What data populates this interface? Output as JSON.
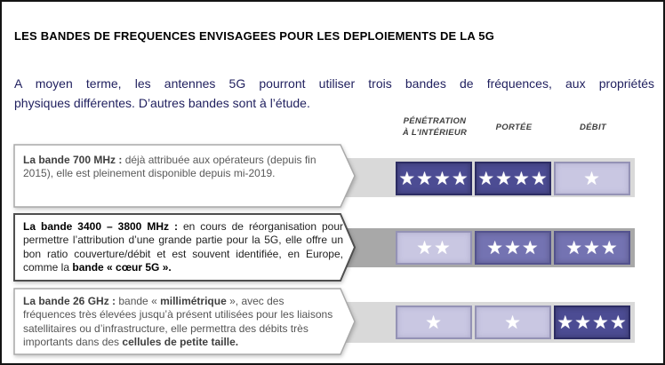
{
  "title": "LES BANDES DE FREQUENCES ENVISAGEES POUR LES DEPLOIEMENTS DE LA 5G",
  "intro": {
    "line1": "A moyen terme, les antennes 5G pourront utiliser trois bandes de fréquences, aux propriétés",
    "line2": "physiques différentes. D’autres bandes sont à l’étude."
  },
  "columns": [
    {
      "id": "penetration",
      "line1": "PÉNÉTRATION",
      "line2": "À L’INTÉRIEUR"
    },
    {
      "id": "portee",
      "label": "PORTÉE"
    },
    {
      "id": "debit",
      "label": "DÉBIT"
    }
  ],
  "rows": [
    {
      "id": "bande-700-mhz",
      "segments": [
        {
          "text": "La bande 700 MHz : ",
          "bold": true
        },
        {
          "text": "déjà attribuée aux opérateurs (depuis fin 2015), elle est pleinement disponible depuis mi-2019.",
          "bold": false
        }
      ],
      "ratings": [
        {
          "column": "penetration",
          "stars": 4,
          "level": "dark"
        },
        {
          "column": "portee",
          "stars": 4,
          "level": "dark"
        },
        {
          "column": "debit",
          "stars": 1,
          "level": "light"
        }
      ]
    },
    {
      "id": "bande-3400-3800-mhz",
      "segments": [
        {
          "text": "La bande 3400 – 3800 MHz : ",
          "bold": true
        },
        {
          "text": "en cours de réorganisation pour permettre l’attribution d’une grande partie pour la 5G, elle offre un bon ratio couverture/débit et est souvent identifiée, en Europe, comme la ",
          "bold": false
        },
        {
          "text": "bande « cœur 5G ».",
          "bold": true
        }
      ],
      "ratings": [
        {
          "column": "penetration",
          "stars": 2,
          "level": "light"
        },
        {
          "column": "portee",
          "stars": 3,
          "level": "medium"
        },
        {
          "column": "debit",
          "stars": 3,
          "level": "medium"
        }
      ]
    },
    {
      "id": "bande-26-ghz",
      "segments": [
        {
          "text": "La bande 26 GHz : ",
          "bold": true
        },
        {
          "text": "bande « ",
          "bold": false
        },
        {
          "text": "millimétrique",
          "bold": true
        },
        {
          "text": " », avec des fréquences très élevées jusqu’à présent utilisées pour les liaisons satellitaires ou d’infrastructure, elle permettra des débits très importants dans des ",
          "bold": false
        },
        {
          "text": "cellules de petite taille.",
          "bold": true
        }
      ],
      "ratings": [
        {
          "column": "penetration",
          "stars": 1,
          "level": "light"
        },
        {
          "column": "portee",
          "stars": 1,
          "level": "light"
        },
        {
          "column": "debit",
          "stars": 4,
          "level": "dark"
        }
      ]
    }
  ],
  "star_glyph": "★",
  "colors": {
    "accent_dark": "#4c4c93",
    "accent_medium": "#7473b2",
    "accent_light": "#c9c7e2",
    "band_light": "#d9d9d9",
    "band_dark": "#a8a8a8",
    "intro_text": "#1f1f5e",
    "title_text": "#000000",
    "body_gray": "#595959",
    "body_dark": "#1e1e1e"
  }
}
